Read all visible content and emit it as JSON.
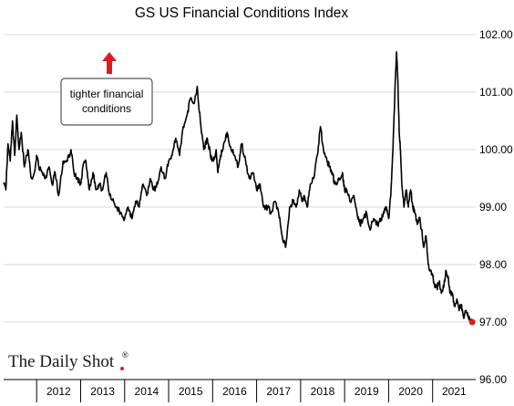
{
  "chart_data": {
    "type": "line",
    "title": "GS US Financial Conditions Index",
    "xlabel": "",
    "ylabel": "",
    "x_range": [
      2011.25,
      2021.98
    ],
    "ylim": [
      96.0,
      102.0
    ],
    "y_ticks": [
      "96.00",
      "97.00",
      "98.00",
      "99.00",
      "100.00",
      "101.00",
      "102.00"
    ],
    "y_axis_side": "right",
    "x_ticks": [
      "2012",
      "2013",
      "2014",
      "2015",
      "2016",
      "2017",
      "2018",
      "2019",
      "2020",
      "2021"
    ],
    "grid": "horizontal",
    "legend": "none",
    "series": [
      {
        "color": "#000000",
        "x": [
          2011.25,
          2011.3,
          2011.35,
          2011.4,
          2011.45,
          2011.5,
          2011.55,
          2011.6,
          2011.65,
          2011.72,
          2011.8,
          2011.88,
          2011.95,
          2012.0,
          2012.05,
          2012.12,
          2012.2,
          2012.28,
          2012.35,
          2012.42,
          2012.5,
          2012.6,
          2012.7,
          2012.78,
          2012.85,
          2012.92,
          2013.0,
          2013.05,
          2013.12,
          2013.2,
          2013.28,
          2013.35,
          2013.42,
          2013.5,
          2013.58,
          2013.66,
          2013.75,
          2013.83,
          2013.9,
          2014.0,
          2014.08,
          2014.16,
          2014.25,
          2014.33,
          2014.42,
          2014.5,
          2014.58,
          2014.66,
          2014.75,
          2014.83,
          2014.92,
          2015.0,
          2015.08,
          2015.16,
          2015.25,
          2015.33,
          2015.42,
          2015.5,
          2015.58,
          2015.65,
          2015.72,
          2015.8,
          2015.88,
          2015.95,
          2016.02,
          2016.08,
          2016.12,
          2016.18,
          2016.25,
          2016.33,
          2016.42,
          2016.5,
          2016.58,
          2016.66,
          2016.75,
          2016.83,
          2016.92,
          2017.0,
          2017.08,
          2017.16,
          2017.25,
          2017.33,
          2017.42,
          2017.5,
          2017.58,
          2017.66,
          2017.75,
          2017.83,
          2017.9,
          2017.97,
          2018.03,
          2018.08,
          2018.15,
          2018.22,
          2018.3,
          2018.38,
          2018.45,
          2018.52,
          2018.6,
          2018.66,
          2018.72,
          2018.77,
          2018.83,
          2018.88,
          2018.95,
          2019.0,
          2019.05,
          2019.12,
          2019.2,
          2019.28,
          2019.35,
          2019.42,
          2019.5,
          2019.58,
          2019.66,
          2019.75,
          2019.83,
          2019.9,
          2019.95,
          2020.0,
          2020.05,
          2020.1,
          2020.15,
          2020.18,
          2020.21,
          2020.24,
          2020.27,
          2020.3,
          2020.35,
          2020.4,
          2020.45,
          2020.5,
          2020.55,
          2020.6,
          2020.65,
          2020.7,
          2020.75,
          2020.8,
          2020.85,
          2020.9,
          2020.95,
          2021.0,
          2021.05,
          2021.1,
          2021.15,
          2021.2,
          2021.25,
          2021.3,
          2021.35,
          2021.4,
          2021.45,
          2021.5,
          2021.55,
          2021.6,
          2021.65,
          2021.7,
          2021.75,
          2021.8,
          2021.85,
          2021.9
        ],
        "values": [
          99.4,
          99.3,
          100.1,
          99.8,
          100.5,
          99.9,
          100.6,
          100.0,
          100.3,
          99.7,
          100.0,
          99.5,
          99.6,
          99.9,
          99.7,
          99.6,
          99.5,
          99.7,
          99.4,
          99.6,
          99.2,
          99.8,
          99.8,
          100.0,
          99.6,
          99.5,
          99.4,
          99.7,
          99.8,
          99.3,
          99.6,
          99.3,
          99.4,
          99.3,
          99.6,
          99.2,
          99.1,
          99.0,
          98.9,
          98.8,
          99.0,
          98.8,
          99.1,
          99.0,
          99.4,
          99.2,
          99.5,
          99.3,
          99.4,
          99.7,
          99.5,
          99.8,
          99.9,
          100.2,
          99.9,
          100.4,
          100.6,
          100.9,
          100.8,
          101.1,
          100.5,
          100.0,
          100.2,
          99.9,
          99.8,
          100.0,
          99.6,
          99.9,
          100.1,
          100.3,
          100.0,
          99.9,
          99.7,
          100.1,
          99.8,
          99.5,
          99.6,
          99.3,
          99.4,
          99.0,
          99.0,
          98.9,
          99.1,
          98.9,
          98.5,
          98.3,
          99.0,
          99.1,
          99.0,
          99.3,
          99.1,
          99.2,
          99.0,
          99.4,
          99.5,
          99.9,
          100.4,
          100.0,
          99.8,
          99.7,
          99.6,
          99.4,
          99.4,
          99.5,
          99.6,
          99.3,
          99.3,
          99.1,
          99.2,
          98.9,
          98.7,
          98.8,
          98.9,
          98.6,
          98.8,
          98.7,
          98.8,
          98.9,
          99.0,
          98.8,
          99.2,
          100.0,
          101.2,
          101.7,
          101.2,
          100.3,
          100.0,
          99.4,
          99.0,
          99.3,
          99.0,
          99.3,
          99.0,
          98.9,
          98.7,
          98.8,
          98.6,
          98.3,
          98.5,
          98.0,
          97.9,
          97.8,
          97.6,
          97.6,
          97.7,
          97.5,
          97.6,
          97.9,
          97.8,
          97.5,
          97.5,
          97.3,
          97.4,
          97.2,
          97.3,
          97.1,
          97.2,
          97.1,
          97.05,
          97.0
        ]
      }
    ],
    "end_marker": {
      "x": 2021.9,
      "y": 97.0,
      "color": "#e01b1b"
    },
    "annotation": {
      "lines": [
        "tighter financial",
        "conditions"
      ],
      "arrow_color": "#e01b1b"
    },
    "source": {
      "brand": "The Daily Shot",
      "mark": "®"
    }
  }
}
